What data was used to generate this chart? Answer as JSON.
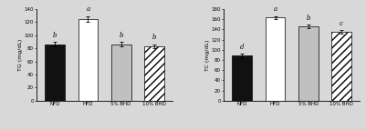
{
  "left": {
    "ylabel": "TG (mg/dL)",
    "categories": [
      "NFD",
      "HFD",
      "5% BHD",
      "10% BHD"
    ],
    "values": [
      86,
      125,
      86,
      83
    ],
    "errors": [
      3.5,
      4.5,
      3.5,
      3.0
    ],
    "ylim": [
      0,
      140
    ],
    "yticks": [
      0,
      20,
      40,
      60,
      80,
      100,
      120,
      140
    ],
    "sig_labels": [
      "b",
      "a",
      "b",
      "b"
    ],
    "bar_colors": [
      "#111111",
      "#ffffff",
      "#c0c0c0",
      "#ffffff"
    ],
    "bar_hatches": [
      "",
      "",
      "",
      "////"
    ]
  },
  "right": {
    "ylabel": "TC (mg/dL)",
    "categories": [
      "NFD",
      "HFD",
      "5% BHD",
      "10% BHD"
    ],
    "values": [
      88,
      163,
      146,
      135
    ],
    "errors": [
      4.0,
      3.5,
      3.0,
      3.5
    ],
    "ylim": [
      0,
      180
    ],
    "yticks": [
      0,
      20,
      40,
      60,
      80,
      100,
      120,
      140,
      160,
      180
    ],
    "sig_labels": [
      "d",
      "a",
      "b",
      "c"
    ],
    "bar_colors": [
      "#111111",
      "#ffffff",
      "#c0c0c0",
      "#ffffff"
    ],
    "bar_hatches": [
      "",
      "",
      "",
      "////"
    ]
  },
  "background_color": "#d8d8d8",
  "bar_width": 0.6,
  "fontsize_ylabel": 4.5,
  "fontsize_tick": 4.0,
  "fontsize_sig": 5.0,
  "fontsize_xtick": 4.0
}
